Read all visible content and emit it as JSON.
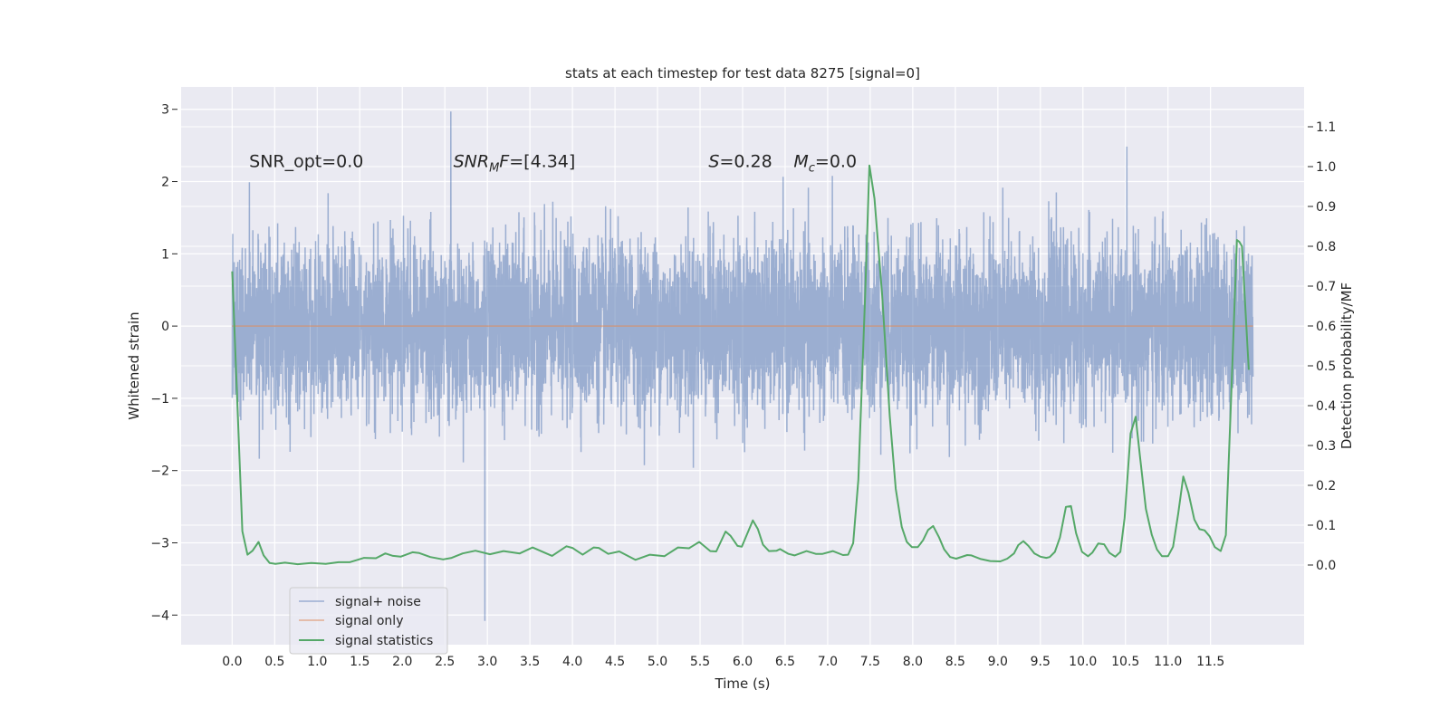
{
  "chart_data": {
    "type": "line",
    "title": "stats at each timestep for test data 8275 [signal=0]",
    "xlabel": "Time (s)",
    "ylabel": "Whitened strain",
    "y2label": "Detection probability/MF",
    "xlim": [
      -0.6,
      12.6
    ],
    "ylim": [
      -4.41,
      3.31
    ],
    "y2lim": [
      -0.2,
      1.2
    ],
    "grid": true,
    "xticks": [
      "0.0",
      "0.5",
      "1.0",
      "1.5",
      "2.0",
      "2.5",
      "3.0",
      "3.5",
      "4.0",
      "4.5",
      "5.0",
      "5.5",
      "6.0",
      "6.5",
      "7.0",
      "7.5",
      "8.0",
      "8.5",
      "9.0",
      "9.5",
      "10.0",
      "10.5",
      "11.0",
      "11.5"
    ],
    "yticks": [
      "3",
      "2",
      "1",
      "0",
      "−1",
      "−2",
      "−3",
      "−4"
    ],
    "y2ticks": [
      "1.1",
      "1.0",
      "0.9",
      "0.8",
      "0.7",
      "0.6",
      "0.5",
      "0.4",
      "0.3",
      "0.2",
      "0.1",
      "0.0"
    ],
    "legend_position": "lower-left",
    "colors": {
      "noise": "#4c72b0",
      "signal": "#dd8452",
      "stats": "#55a868",
      "background": "#eaeaf2",
      "grid": "#ffffff"
    },
    "annotations": [
      {
        "x": 0.2,
        "y": 2.2,
        "segments": [
          {
            "t": "SNR_opt=0.0",
            "s": "normal"
          }
        ]
      },
      {
        "x": 2.6,
        "y": 2.2,
        "segments": [
          {
            "t": "SNR",
            "s": "italic"
          },
          {
            "t": "M",
            "s": "italic-sub"
          },
          {
            "t": "F",
            "s": "italic"
          },
          {
            "t": "=[4.34]",
            "s": "normal"
          }
        ]
      },
      {
        "x": 5.6,
        "y": 2.2,
        "segments": [
          {
            "t": "S",
            "s": "italic"
          },
          {
            "t": "=0.28",
            "s": "normal"
          }
        ]
      },
      {
        "x": 6.6,
        "y": 2.2,
        "segments": [
          {
            "t": "M",
            "s": "italic"
          },
          {
            "t": "c",
            "s": "italic-sub"
          },
          {
            "t": "=0.0",
            "s": "normal"
          }
        ]
      }
    ],
    "series": [
      {
        "name": "signal+ noise",
        "axis": "left",
        "kind": "noise",
        "t_range": [
          0,
          12
        ],
        "std": 0.58,
        "min": {
          "t": 2.97,
          "value": -4.08
        },
        "max": {
          "t": 2.57,
          "value": 2.97
        }
      },
      {
        "name": "signal only",
        "axis": "left",
        "kind": "constant",
        "value": 0.0,
        "t_range": [
          0,
          12
        ]
      },
      {
        "name": "signal statistics",
        "axis": "right",
        "kind": "line",
        "t": [
          0,
          0.12,
          0.18,
          0.24,
          0.31,
          0.37,
          0.44,
          0.51,
          0.62,
          0.77,
          0.93,
          1.1,
          1.25,
          1.38,
          1.46,
          1.55,
          1.69,
          1.8,
          1.89,
          1.98,
          2.12,
          2.2,
          2.33,
          2.48,
          2.58,
          2.71,
          2.86,
          3.03,
          3.19,
          3.38,
          3.53,
          3.76,
          3.93,
          4.0,
          4.12,
          4.25,
          4.31,
          4.42,
          4.55,
          4.74,
          4.91,
          5.08,
          5.24,
          5.37,
          5.49,
          5.62,
          5.69,
          5.8,
          5.86,
          5.94,
          5.99,
          6.12,
          6.18,
          6.24,
          6.31,
          6.4,
          6.44,
          6.54,
          6.61,
          6.75,
          6.86,
          6.94,
          7.06,
          7.18,
          7.24,
          7.3,
          7.36,
          7.44,
          7.49,
          7.55,
          7.64,
          7.73,
          7.8,
          7.87,
          7.93,
          7.99,
          8.06,
          8.12,
          8.18,
          8.24,
          8.31,
          8.37,
          8.44,
          8.51,
          8.64,
          8.69,
          8.8,
          8.91,
          9.03,
          9.11,
          9.19,
          9.24,
          9.3,
          9.36,
          9.43,
          9.5,
          9.57,
          9.61,
          9.67,
          9.73,
          9.8,
          9.86,
          9.92,
          9.99,
          10.06,
          10.11,
          10.18,
          10.25,
          10.31,
          10.38,
          10.44,
          10.49,
          10.56,
          10.62,
          10.67,
          10.74,
          10.81,
          10.87,
          10.93,
          11.0,
          11.06,
          11.12,
          11.18,
          11.24,
          11.31,
          11.37,
          11.43,
          11.49,
          11.55,
          11.62,
          11.68,
          11.74,
          11.81,
          11.84,
          11.87,
          11.95
        ],
        "values": [
          0.737,
          0.085,
          0.026,
          0.036,
          0.058,
          0.024,
          0.005,
          0.003,
          0.006,
          0.002,
          0.005,
          0.003,
          0.007,
          0.007,
          0.012,
          0.018,
          0.017,
          0.029,
          0.023,
          0.021,
          0.032,
          0.03,
          0.02,
          0.014,
          0.018,
          0.029,
          0.036,
          0.027,
          0.035,
          0.029,
          0.044,
          0.023,
          0.047,
          0.043,
          0.026,
          0.044,
          0.043,
          0.028,
          0.034,
          0.013,
          0.026,
          0.022,
          0.044,
          0.042,
          0.058,
          0.035,
          0.034,
          0.084,
          0.073,
          0.048,
          0.046,
          0.112,
          0.09,
          0.051,
          0.035,
          0.036,
          0.04,
          0.028,
          0.024,
          0.035,
          0.028,
          0.028,
          0.035,
          0.025,
          0.026,
          0.055,
          0.214,
          0.677,
          1.003,
          0.92,
          0.677,
          0.373,
          0.191,
          0.096,
          0.058,
          0.045,
          0.045,
          0.062,
          0.088,
          0.098,
          0.069,
          0.039,
          0.02,
          0.016,
          0.025,
          0.024,
          0.015,
          0.01,
          0.009,
          0.016,
          0.029,
          0.05,
          0.06,
          0.048,
          0.029,
          0.021,
          0.018,
          0.02,
          0.033,
          0.069,
          0.146,
          0.148,
          0.08,
          0.033,
          0.022,
          0.031,
          0.054,
          0.052,
          0.031,
          0.021,
          0.033,
          0.118,
          0.33,
          0.372,
          0.274,
          0.141,
          0.076,
          0.039,
          0.022,
          0.022,
          0.046,
          0.129,
          0.222,
          0.182,
          0.114,
          0.09,
          0.087,
          0.072,
          0.045,
          0.035,
          0.075,
          0.405,
          0.816,
          0.811,
          0.8,
          0.49
        ]
      }
    ]
  }
}
